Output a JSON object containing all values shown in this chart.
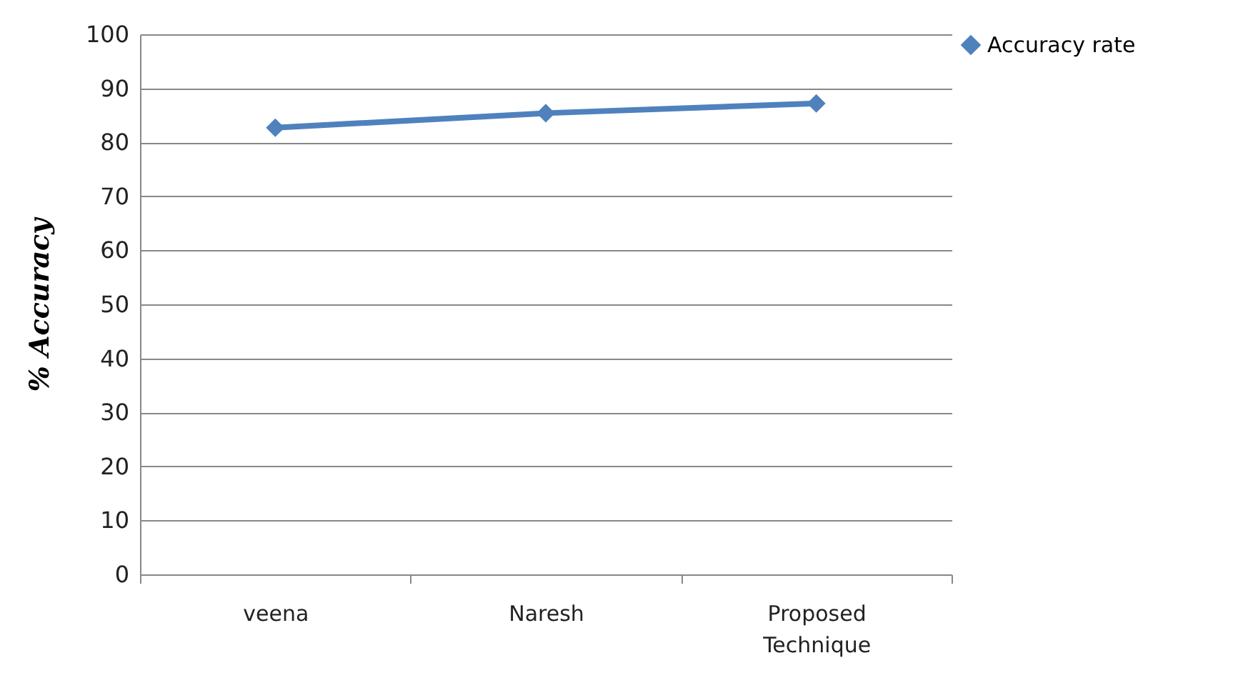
{
  "chart_data": {
    "type": "line",
    "ylabel": "% Accuracy",
    "categories": [
      "veena",
      "Naresh",
      "Proposed Technique"
    ],
    "series": [
      {
        "name": "Accuracy rate",
        "color": "#4f81bd",
        "values": [
          82.7,
          85.4,
          87.2
        ]
      }
    ],
    "ylim": [
      0,
      100
    ],
    "yticks": [
      0,
      10,
      20,
      30,
      40,
      50,
      60,
      70,
      80,
      90,
      100
    ],
    "grid": "y",
    "legend": "right",
    "marker": "diamond",
    "line_style": "solid"
  }
}
